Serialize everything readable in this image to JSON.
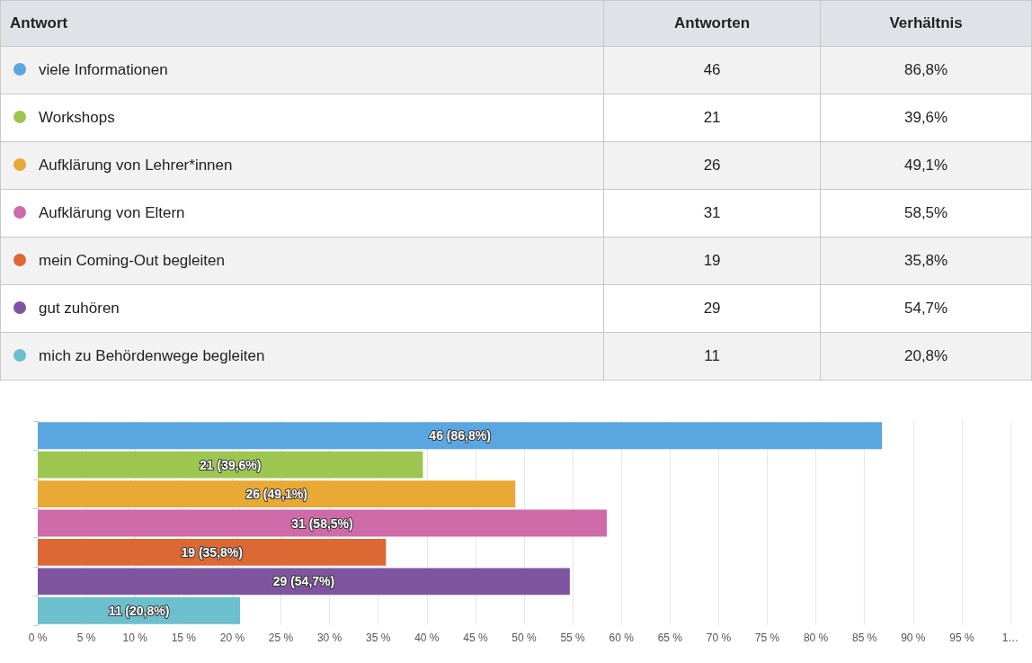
{
  "chart_data": [
    {
      "type": "other",
      "legend_title": "Antwort",
      "data_labels": true,
      "categories": [
        "viele Informationen",
        "Workshops",
        "Aufklärung von Lehrer*innen",
        "Aufklärung von Eltern",
        "mein Coming-Out begleiten",
        "gut zuhören",
        "mich zu Behördenwege begleiten"
      ],
      "colors": [
        "#5aa6e0",
        "#9dc650",
        "#e8a935",
        "#cf6aa8",
        "#dc6833",
        "#7f55a0",
        "#6cbfcc"
      ],
      "series": [
        {
          "name": "Antworten",
          "values": [
            46,
            21,
            26,
            31,
            19,
            29,
            11
          ]
        },
        {
          "name": "Verhältnis",
          "values": [
            86.8,
            39.6,
            49.1,
            58.5,
            35.8,
            54.7,
            20.8
          ],
          "value_labels": [
            "86,8%",
            "39,6%",
            "49,1%",
            "58,5%",
            "35,8%",
            "54,7%",
            "20,8%"
          ]
        }
      ]
    },
    {
      "type": "bar",
      "orientation": "horizontal",
      "categories": [
        null,
        null,
        null,
        null,
        null,
        null,
        null
      ],
      "values": [
        86.8,
        39.6,
        49.1,
        58.5,
        35.8,
        54.7,
        20.8
      ],
      "colors": [
        "#5aa6e0",
        "#9dc650",
        "#e8a935",
        "#cf6aa8",
        "#dc6833",
        "#7f55a0",
        "#6cbfcc"
      ],
      "value_labels": [
        "46 (86,8%)",
        "21 (39,6%)",
        "26 (49,1%)",
        "31 (58,5%)",
        "19 (35,8%)",
        "29 (54,7%)",
        "11 (20,8%)"
      ],
      "xlim": [
        0,
        100
      ],
      "xticks": [
        {
          "value": 0,
          "label": "0 %"
        },
        {
          "value": 5,
          "label": "5 %"
        },
        {
          "value": 10,
          "label": "10 %"
        },
        {
          "value": 15,
          "label": "15 %"
        },
        {
          "value": 20,
          "label": "20 %"
        },
        {
          "value": 25,
          "label": "25 %"
        },
        {
          "value": 30,
          "label": "30 %"
        },
        {
          "value": 35,
          "label": "35 %"
        },
        {
          "value": 40,
          "label": "40 %"
        },
        {
          "value": 45,
          "label": "45 %"
        },
        {
          "value": 50,
          "label": "50 %"
        },
        {
          "value": 55,
          "label": "55 %"
        },
        {
          "value": 60,
          "label": "60 %"
        },
        {
          "value": 65,
          "label": "65 %"
        },
        {
          "value": 70,
          "label": "70 %"
        },
        {
          "value": 75,
          "label": "75 %"
        },
        {
          "value": 80,
          "label": "80 %"
        },
        {
          "value": 85,
          "label": "85 %"
        },
        {
          "value": 90,
          "label": "90 %"
        },
        {
          "value": 95,
          "label": "95 %"
        },
        {
          "value": 100,
          "label": "1…"
        }
      ],
      "grid": "x",
      "tick_labels": "x"
    }
  ]
}
